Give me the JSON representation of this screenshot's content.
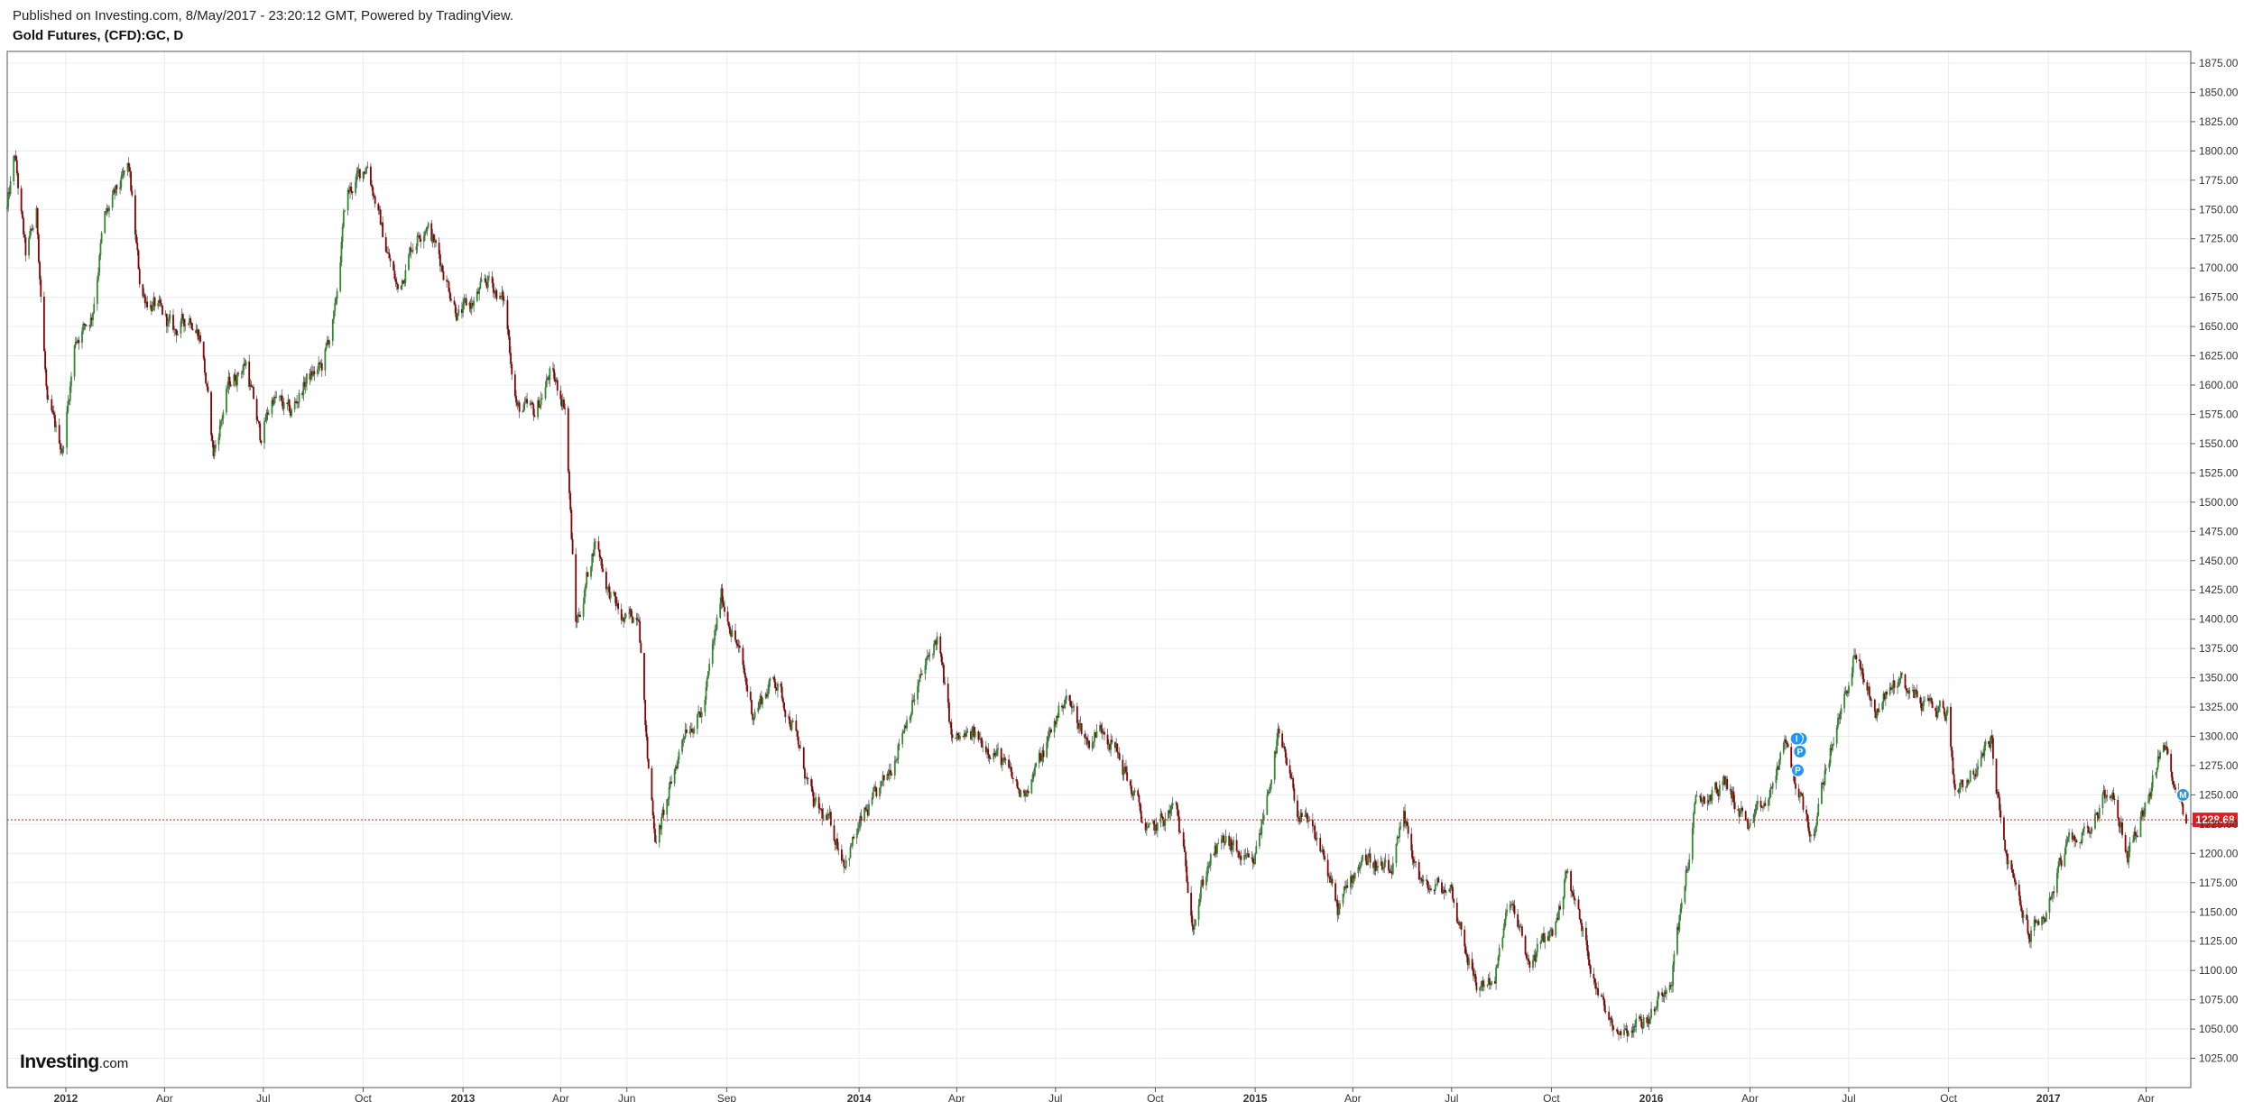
{
  "header": {
    "published": "Published on Investing.com, 8/May/2017 - 23:20:12 GMT, Powered by TradingView.",
    "symbol": "Gold Futures, (CFD):GC, D"
  },
  "logo": {
    "main": "Investing",
    "sub": ".com"
  },
  "colors": {
    "up": "#2e8b2e",
    "down": "#8b0000",
    "last_price": "#e11d1d",
    "marker": "#2196f3",
    "grid": "#ececec"
  },
  "chart_data": {
    "type": "candlestick",
    "title": "Gold Futures, (CFD):GC, D",
    "interval": "D",
    "last_price": 1228.68,
    "last_price_label": "1228.68",
    "ylim": [
      1000,
      1885
    ],
    "y_ticks": [
      1025,
      1050,
      1075,
      1100,
      1125,
      1150,
      1175,
      1200,
      1225,
      1250,
      1275,
      1300,
      1325,
      1350,
      1375,
      1400,
      1425,
      1450,
      1475,
      1500,
      1525,
      1550,
      1575,
      1600,
      1625,
      1650,
      1675,
      1700,
      1725,
      1750,
      1775,
      1800,
      1825,
      1850,
      1875
    ],
    "y_tick_labels": [
      "1025.00",
      "1050.00",
      "1075.00",
      "1100.00",
      "1125.00",
      "1150.00",
      "1175.00",
      "1200.00",
      "1225.00",
      "1250.00",
      "1275.00",
      "1300.00",
      "1325.00",
      "1350.00",
      "1375.00",
      "1400.00",
      "1425.00",
      "1450.00",
      "1475.00",
      "1500.00",
      "1525.00",
      "1550.00",
      "1575.00",
      "1600.00",
      "1625.00",
      "1650.00",
      "1675.00",
      "1700.00",
      "1725.00",
      "1750.00",
      "1775.00",
      "1800.00",
      "1825.00",
      "1850.00",
      "1875.00"
    ],
    "x_range": [
      "2011-11-08",
      "2017-05-08"
    ],
    "x_ticks": [
      {
        "date": "2012-01-01",
        "label": "2012",
        "year": true
      },
      {
        "date": "2012-04-01",
        "label": "Apr"
      },
      {
        "date": "2012-07-01",
        "label": "Jul"
      },
      {
        "date": "2012-10-01",
        "label": "Oct"
      },
      {
        "date": "2013-01-01",
        "label": "2013",
        "year": true
      },
      {
        "date": "2013-04-01",
        "label": "Apr"
      },
      {
        "date": "2013-06-01",
        "label": "Jun"
      },
      {
        "date": "2013-09-01",
        "label": "Sep"
      },
      {
        "date": "2014-01-01",
        "label": "2014",
        "year": true
      },
      {
        "date": "2014-04-01",
        "label": "Apr"
      },
      {
        "date": "2014-07-01",
        "label": "Jul"
      },
      {
        "date": "2014-10-01",
        "label": "Oct"
      },
      {
        "date": "2015-01-01",
        "label": "2015",
        "year": true
      },
      {
        "date": "2015-04-01",
        "label": "Apr"
      },
      {
        "date": "2015-07-01",
        "label": "Jul"
      },
      {
        "date": "2015-10-01",
        "label": "Oct"
      },
      {
        "date": "2016-01-01",
        "label": "2016",
        "year": true
      },
      {
        "date": "2016-04-01",
        "label": "Apr"
      },
      {
        "date": "2016-07-01",
        "label": "Jul"
      },
      {
        "date": "2016-10-01",
        "label": "Oct"
      },
      {
        "date": "2017-01-01",
        "label": "2017",
        "year": true
      },
      {
        "date": "2017-04-01",
        "label": "Apr"
      }
    ],
    "close_path": [
      [
        "2011-11-08",
        1750
      ],
      [
        "2011-11-15",
        1795
      ],
      [
        "2011-11-25",
        1710
      ],
      [
        "2011-12-05",
        1745
      ],
      [
        "2011-12-15",
        1580
      ],
      [
        "2011-12-29",
        1545
      ],
      [
        "2012-01-10",
        1640
      ],
      [
        "2012-01-25",
        1660
      ],
      [
        "2012-02-05",
        1740
      ],
      [
        "2012-02-28",
        1785
      ],
      [
        "2012-03-10",
        1680
      ],
      [
        "2012-03-25",
        1665
      ],
      [
        "2012-04-10",
        1645
      ],
      [
        "2012-04-25",
        1660
      ],
      [
        "2012-05-05",
        1640
      ],
      [
        "2012-05-16",
        1540
      ],
      [
        "2012-05-30",
        1600
      ],
      [
        "2012-06-15",
        1620
      ],
      [
        "2012-06-28",
        1555
      ],
      [
        "2012-07-10",
        1590
      ],
      [
        "2012-07-26",
        1575
      ],
      [
        "2012-08-10",
        1605
      ],
      [
        "2012-08-24",
        1615
      ],
      [
        "2012-09-05",
        1660
      ],
      [
        "2012-09-15",
        1760
      ],
      [
        "2012-10-05",
        1790
      ],
      [
        "2012-10-20",
        1725
      ],
      [
        "2012-11-02",
        1680
      ],
      [
        "2012-11-15",
        1720
      ],
      [
        "2012-11-28",
        1740
      ],
      [
        "2012-12-10",
        1710
      ],
      [
        "2012-12-28",
        1660
      ],
      [
        "2013-01-10",
        1670
      ],
      [
        "2013-01-25",
        1690
      ],
      [
        "2013-02-08",
        1670
      ],
      [
        "2013-02-20",
        1580
      ],
      [
        "2013-03-08",
        1575
      ],
      [
        "2013-03-22",
        1610
      ],
      [
        "2013-04-05",
        1585
      ],
      [
        "2013-04-15",
        1395
      ],
      [
        "2013-04-22",
        1420
      ],
      [
        "2013-05-03",
        1470
      ],
      [
        "2013-05-15",
        1425
      ],
      [
        "2013-05-30",
        1395
      ],
      [
        "2013-06-12",
        1410
      ],
      [
        "2013-06-20",
        1280
      ],
      [
        "2013-06-28",
        1210
      ],
      [
        "2013-07-10",
        1250
      ],
      [
        "2013-07-25",
        1310
      ],
      [
        "2013-08-10",
        1320
      ],
      [
        "2013-08-27",
        1420
      ],
      [
        "2013-09-10",
        1380
      ],
      [
        "2013-09-25",
        1320
      ],
      [
        "2013-10-15",
        1350
      ],
      [
        "2013-11-01",
        1310
      ],
      [
        "2013-11-20",
        1240
      ],
      [
        "2013-12-05",
        1225
      ],
      [
        "2013-12-19",
        1195
      ],
      [
        "2014-01-05",
        1230
      ],
      [
        "2014-01-25",
        1260
      ],
      [
        "2014-02-15",
        1320
      ],
      [
        "2014-03-14",
        1385
      ],
      [
        "2014-03-28",
        1295
      ],
      [
        "2014-04-15",
        1300
      ],
      [
        "2014-05-05",
        1290
      ],
      [
        "2014-05-30",
        1250
      ],
      [
        "2014-06-15",
        1275
      ],
      [
        "2014-07-10",
        1335
      ],
      [
        "2014-07-31",
        1295
      ],
      [
        "2014-08-15",
        1310
      ],
      [
        "2014-09-05",
        1265
      ],
      [
        "2014-09-25",
        1215
      ],
      [
        "2014-10-20",
        1240
      ],
      [
        "2014-11-05",
        1145
      ],
      [
        "2014-11-20",
        1195
      ],
      [
        "2014-12-05",
        1210
      ],
      [
        "2014-12-30",
        1185
      ],
      [
        "2015-01-22",
        1300
      ],
      [
        "2015-02-10",
        1235
      ],
      [
        "2015-03-05",
        1200
      ],
      [
        "2015-03-18",
        1150
      ],
      [
        "2015-04-10",
        1200
      ],
      [
        "2015-05-05",
        1180
      ],
      [
        "2015-05-18",
        1225
      ],
      [
        "2015-06-05",
        1170
      ],
      [
        "2015-06-30",
        1170
      ],
      [
        "2015-07-24",
        1085
      ],
      [
        "2015-08-10",
        1095
      ],
      [
        "2015-08-24",
        1160
      ],
      [
        "2015-09-10",
        1105
      ],
      [
        "2015-10-05",
        1140
      ],
      [
        "2015-10-15",
        1185
      ],
      [
        "2015-11-05",
        1110
      ],
      [
        "2015-11-20",
        1065
      ],
      [
        "2015-12-03",
        1050
      ],
      [
        "2015-12-31",
        1060
      ],
      [
        "2016-01-20",
        1100
      ],
      [
        "2016-02-11",
        1240
      ],
      [
        "2016-03-10",
        1260
      ],
      [
        "2016-04-01",
        1220
      ],
      [
        "2016-04-20",
        1250
      ],
      [
        "2016-05-02",
        1295
      ],
      [
        "2016-05-30",
        1210
      ],
      [
        "2016-06-10",
        1275
      ],
      [
        "2016-06-24",
        1320
      ],
      [
        "2016-07-06",
        1370
      ],
      [
        "2016-07-25",
        1320
      ],
      [
        "2016-08-15",
        1350
      ],
      [
        "2016-09-06",
        1330
      ],
      [
        "2016-09-30",
        1320
      ],
      [
        "2016-10-07",
        1255
      ],
      [
        "2016-10-30",
        1275
      ],
      [
        "2016-11-09",
        1300
      ],
      [
        "2016-11-20",
        1210
      ],
      [
        "2016-12-01",
        1170
      ],
      [
        "2016-12-15",
        1130
      ],
      [
        "2016-12-30",
        1150
      ],
      [
        "2017-01-15",
        1200
      ],
      [
        "2017-02-05",
        1220
      ],
      [
        "2017-02-27",
        1255
      ],
      [
        "2017-03-15",
        1200
      ],
      [
        "2017-04-05",
        1255
      ],
      [
        "2017-04-17",
        1292
      ],
      [
        "2017-04-27",
        1265
      ],
      [
        "2017-05-08",
        1228
      ]
    ],
    "markers": [
      {
        "date": "2016-05-16",
        "value": 1298,
        "label": "P"
      },
      {
        "date": "2016-05-18",
        "value": 1298,
        "label": "P"
      },
      {
        "date": "2016-05-17",
        "value": 1287,
        "label": "P"
      },
      {
        "date": "2016-05-14",
        "value": 1298,
        "label": "I"
      },
      {
        "date": "2016-05-15",
        "value": 1271,
        "label": "P"
      },
      {
        "date": "2017-05-05",
        "value": 1250,
        "label": "M"
      }
    ]
  }
}
